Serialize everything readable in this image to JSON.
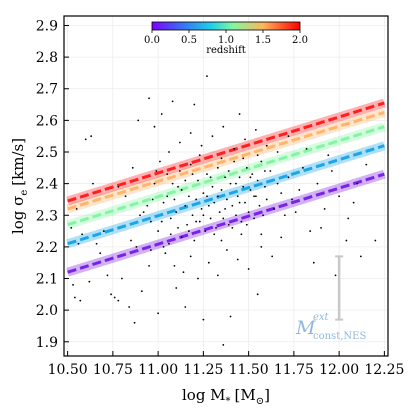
{
  "chart_data": {
    "type": "scatter",
    "xlabel": "log M",
    "xlabel_sub": "*",
    "xlabel_unit": "[M",
    "xlabel_unit_sub": "⊙",
    "xlabel_unit_close": "]",
    "ylabel": "log σ",
    "ylabel_sub": "e",
    "ylabel_unit": "[km/s]",
    "xlim": [
      10.48,
      12.27
    ],
    "ylim": [
      1.855,
      2.93
    ],
    "xticks": [
      "10.50",
      "10.75",
      "11.00",
      "11.25",
      "11.50",
      "11.75",
      "12.00",
      "12.25"
    ],
    "yticks": [
      "1.9",
      "2.0",
      "2.1",
      "2.2",
      "2.3",
      "2.4",
      "2.5",
      "2.6",
      "2.7",
      "2.8",
      "2.9"
    ],
    "grid": true,
    "colorbar": {
      "label": "redshift",
      "ticks": [
        "0.0",
        "0.5",
        "1.0",
        "1.5",
        "2.0"
      ],
      "range": [
        0,
        2
      ],
      "colormap": "rainbow",
      "placement": "top-center"
    },
    "model_label": "M",
    "model_label_sup": "ext",
    "model_label_sub": "const,NES",
    "model_label_color": "#8fb8dd",
    "error_bar": {
      "x": 12.0,
      "y": 2.07,
      "y_low": 1.97,
      "y_high": 2.17,
      "color": "#c8c8c8"
    },
    "series": [
      {
        "redshift": 0.0,
        "color": "#7a22e8",
        "x": [
          10.5,
          12.25
        ],
        "y": [
          2.12,
          2.43
        ]
      },
      {
        "redshift": 0.5,
        "color": "#1aa6e8",
        "x": [
          10.5,
          12.25
        ],
        "y": [
          2.21,
          2.52
        ]
      },
      {
        "redshift": 1.0,
        "color": "#84f5a2",
        "x": [
          10.5,
          12.25
        ],
        "y": [
          2.27,
          2.58
        ]
      },
      {
        "redshift": 1.5,
        "color": "#ffb56b",
        "x": [
          10.5,
          12.25
        ],
        "y": [
          2.32,
          2.625
        ]
      },
      {
        "redshift": 2.0,
        "color": "#ff1f1f",
        "x": [
          10.5,
          12.25
        ],
        "y": [
          2.345,
          2.655
        ]
      }
    ],
    "scatter": {
      "color": "#000000",
      "points": [
        [
          10.52,
          2.26
        ],
        [
          10.55,
          2.32
        ],
        [
          10.58,
          2.24
        ],
        [
          10.56,
          2.21
        ],
        [
          10.62,
          2.09
        ],
        [
          10.53,
          2.08
        ],
        [
          10.54,
          2.04
        ],
        [
          10.57,
          2.03
        ],
        [
          10.6,
          2.54
        ],
        [
          10.63,
          2.55
        ],
        [
          10.64,
          2.4
        ],
        [
          10.66,
          2.21
        ],
        [
          10.68,
          2.18
        ],
        [
          10.7,
          2.25
        ],
        [
          10.72,
          2.11
        ],
        [
          10.74,
          2.05
        ],
        [
          10.76,
          2.04
        ],
        [
          10.78,
          2.03
        ],
        [
          10.8,
          2.1
        ],
        [
          10.78,
          2.39
        ],
        [
          10.82,
          2.36
        ],
        [
          10.85,
          2.22
        ],
        [
          10.86,
          2.45
        ],
        [
          10.88,
          2.2
        ],
        [
          10.9,
          2.3
        ],
        [
          10.92,
          2.31
        ],
        [
          10.94,
          2.33
        ],
        [
          10.96,
          2.28
        ],
        [
          10.98,
          2.4
        ],
        [
          10.95,
          2.14
        ],
        [
          10.91,
          2.06
        ],
        [
          10.87,
          1.96
        ],
        [
          10.84,
          2.01
        ],
        [
          10.89,
          2.6
        ],
        [
          10.95,
          2.67
        ],
        [
          10.97,
          2.35
        ],
        [
          11.0,
          2.25
        ],
        [
          11.02,
          2.28
        ],
        [
          11.03,
          2.34
        ],
        [
          11.05,
          2.36
        ],
        [
          11.06,
          2.21
        ],
        [
          11.07,
          2.29
        ],
        [
          11.08,
          2.4
        ],
        [
          11.1,
          2.31
        ],
        [
          11.11,
          2.26
        ],
        [
          11.12,
          2.44
        ],
        [
          11.13,
          2.38
        ],
        [
          11.15,
          2.33
        ],
        [
          11.16,
          2.27
        ],
        [
          11.17,
          2.36
        ],
        [
          11.18,
          2.46
        ],
        [
          11.19,
          2.3
        ],
        [
          11.2,
          2.22
        ],
        [
          11.21,
          2.35
        ],
        [
          11.22,
          2.41
        ],
        [
          11.23,
          2.28
        ],
        [
          11.24,
          2.32
        ],
        [
          11.25,
          2.37
        ],
        [
          11.26,
          2.25
        ],
        [
          11.27,
          2.43
        ],
        [
          11.28,
          2.33
        ],
        [
          11.29,
          2.29
        ],
        [
          11.3,
          2.39
        ],
        [
          11.31,
          2.34
        ],
        [
          11.32,
          2.26
        ],
        [
          11.33,
          2.45
        ],
        [
          11.34,
          2.31
        ],
        [
          11.35,
          2.38
        ],
        [
          11.36,
          2.29
        ],
        [
          11.37,
          2.42
        ],
        [
          11.38,
          2.35
        ],
        [
          11.39,
          2.27
        ],
        [
          11.4,
          2.4
        ],
        [
          11.41,
          2.33
        ],
        [
          11.42,
          2.47
        ],
        [
          11.43,
          2.3
        ],
        [
          11.44,
          2.36
        ],
        [
          11.45,
          2.42
        ],
        [
          11.46,
          2.28
        ],
        [
          11.47,
          2.39
        ],
        [
          11.48,
          2.34
        ],
        [
          11.49,
          2.45
        ],
        [
          11.5,
          2.31
        ],
        [
          11.51,
          2.38
        ],
        [
          11.52,
          2.43
        ],
        [
          11.53,
          2.29
        ],
        [
          11.54,
          2.36
        ],
        [
          11.55,
          2.41
        ],
        [
          11.56,
          2.33
        ],
        [
          11.57,
          2.47
        ],
        [
          11.58,
          2.3
        ],
        [
          11.59,
          2.39
        ],
        [
          11.6,
          2.35
        ],
        [
          11.62,
          2.44
        ],
        [
          11.64,
          2.32
        ],
        [
          11.66,
          2.4
        ],
        [
          11.68,
          2.37
        ],
        [
          11.7,
          2.3
        ],
        [
          11.72,
          2.42
        ],
        [
          11.74,
          2.35
        ],
        [
          11.76,
          2.31
        ],
        [
          11.78,
          2.38
        ],
        [
          11.8,
          2.45
        ],
        [
          11.84,
          2.25
        ],
        [
          11.88,
          2.4
        ],
        [
          11.92,
          2.32
        ],
        [
          11.96,
          2.44
        ],
        [
          12.0,
          2.36
        ],
        [
          12.05,
          2.29
        ],
        [
          12.1,
          2.4
        ],
        [
          12.15,
          2.46
        ],
        [
          12.2,
          2.22
        ],
        [
          11.04,
          2.18
        ],
        [
          11.09,
          2.14
        ],
        [
          11.14,
          2.12
        ],
        [
          11.18,
          2.17
        ],
        [
          11.22,
          2.1
        ],
        [
          11.28,
          2.15
        ],
        [
          11.33,
          2.11
        ],
        [
          11.38,
          2.19
        ],
        [
          11.44,
          2.16
        ],
        [
          11.5,
          2.13
        ],
        [
          11.57,
          2.2
        ],
        [
          11.63,
          2.17
        ],
        [
          11.06,
          2.5
        ],
        [
          11.12,
          2.53
        ],
        [
          11.18,
          2.56
        ],
        [
          11.24,
          2.52
        ],
        [
          11.3,
          2.55
        ],
        [
          11.36,
          2.58
        ],
        [
          11.42,
          2.51
        ],
        [
          11.48,
          2.54
        ],
        [
          11.54,
          2.57
        ],
        [
          11.6,
          2.52
        ],
        [
          11.66,
          2.5
        ],
        [
          11.72,
          2.55
        ],
        [
          11.27,
          2.74
        ],
        [
          11.45,
          2.62
        ],
        [
          11.2,
          2.65
        ],
        [
          11.15,
          2.01
        ],
        [
          11.25,
          1.97
        ],
        [
          11.4,
          1.98
        ],
        [
          11.36,
          1.89
        ],
        [
          11.1,
          2.07
        ],
        [
          11.55,
          2.05
        ],
        [
          11.68,
          2.23
        ],
        [
          11.82,
          2.51
        ],
        [
          11.86,
          2.15
        ],
        [
          11.9,
          2.26
        ],
        [
          11.94,
          2.49
        ],
        [
          11.98,
          2.11
        ],
        [
          12.04,
          2.22
        ],
        [
          12.08,
          2.34
        ],
        [
          12.12,
          2.17
        ],
        [
          11.0,
          1.99
        ],
        [
          10.98,
          2.58
        ],
        [
          11.02,
          2.62
        ],
        [
          11.08,
          2.66
        ],
        [
          11.35,
          2.22
        ],
        [
          11.46,
          2.24
        ],
        [
          10.96,
          2.19
        ],
        [
          10.99,
          2.44
        ],
        [
          11.01,
          2.47
        ],
        [
          11.03,
          2.2
        ],
        [
          11.05,
          2.43
        ],
        [
          11.07,
          2.24
        ],
        [
          11.09,
          2.35
        ],
        [
          11.11,
          2.39
        ],
        [
          11.13,
          2.23
        ],
        [
          11.15,
          2.41
        ],
        [
          11.17,
          2.25
        ],
        [
          11.19,
          2.43
        ],
        [
          11.21,
          2.28
        ],
        [
          11.23,
          2.49
        ],
        [
          11.25,
          2.3
        ],
        [
          11.27,
          2.36
        ],
        [
          11.29,
          2.42
        ],
        [
          11.31,
          2.24
        ],
        [
          11.33,
          2.36
        ],
        [
          11.35,
          2.48
        ],
        [
          11.37,
          2.32
        ],
        [
          11.39,
          2.44
        ],
        [
          11.41,
          2.26
        ],
        [
          11.43,
          2.4
        ],
        [
          11.45,
          2.34
        ],
        [
          11.47,
          2.48
        ],
        [
          11.49,
          2.27
        ],
        [
          11.51,
          2.42
        ],
        [
          11.53,
          2.36
        ],
        [
          11.55,
          2.49
        ],
        [
          11.57,
          2.24
        ],
        [
          11.59,
          2.44
        ]
      ]
    }
  }
}
